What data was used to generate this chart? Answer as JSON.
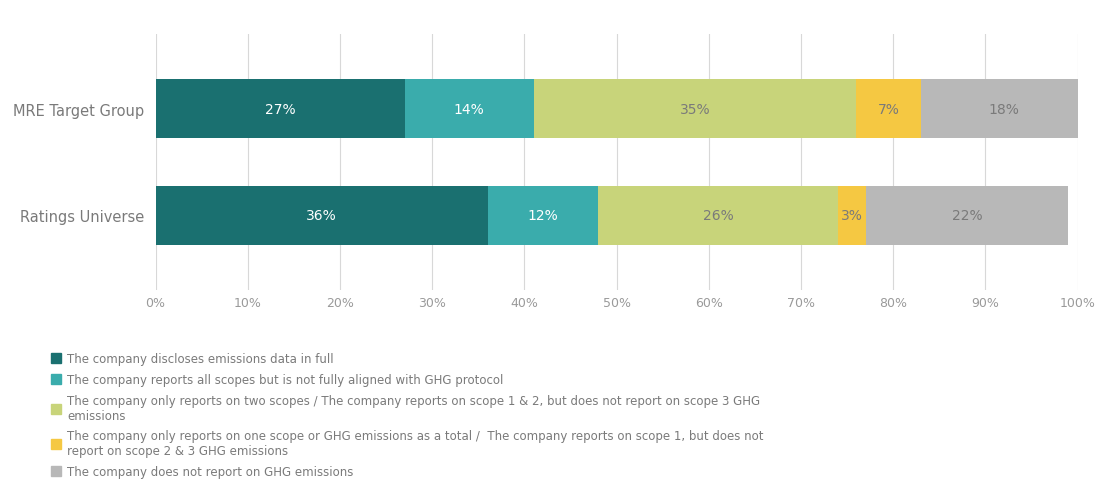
{
  "categories": [
    "MRE Target Group",
    "Ratings Universe"
  ],
  "series": [
    {
      "label": "The company discloses emissions data in full",
      "color": "#1a7070",
      "values": [
        27,
        36
      ],
      "text_color": "#ffffff"
    },
    {
      "label": "The company reports all scopes but is not fully aligned with GHG protocol",
      "color": "#3aacac",
      "values": [
        14,
        12
      ],
      "text_color": "#ffffff"
    },
    {
      "label": "The company only reports on two scopes / The company reports on scope 1 & 2, but does not report on scope 3 GHG\nemissions",
      "color": "#c8d47a",
      "values": [
        35,
        26
      ],
      "text_color": "#7a7a7a"
    },
    {
      "label": "The company only reports on one scope or GHG emissions as a total /  The company reports on scope 1, but does not\nreport on scope 2 & 3 GHG emissions",
      "color": "#f5c842",
      "values": [
        7,
        3
      ],
      "text_color": "#7a7a7a"
    },
    {
      "label": "The company does not report on GHG emissions",
      "color": "#b8b8b8",
      "values": [
        18,
        22
      ],
      "text_color": "#7a7a7a"
    }
  ],
  "xlim": [
    0,
    100
  ],
  "xtick_labels": [
    "0%",
    "10%",
    "20%",
    "30%",
    "40%",
    "50%",
    "60%",
    "70%",
    "80%",
    "90%",
    "100%"
  ],
  "xtick_values": [
    0,
    10,
    20,
    30,
    40,
    50,
    60,
    70,
    80,
    90,
    100
  ],
  "bar_height": 0.55,
  "background_color": "#ffffff",
  "grid_color": "#d8d8d8",
  "label_fontsize": 10.5,
  "tick_fontsize": 9,
  "legend_fontsize": 8.5,
  "bar_label_fontsize": 10,
  "label_color": "#7a7a7a",
  "tick_color": "#9a9a9a"
}
